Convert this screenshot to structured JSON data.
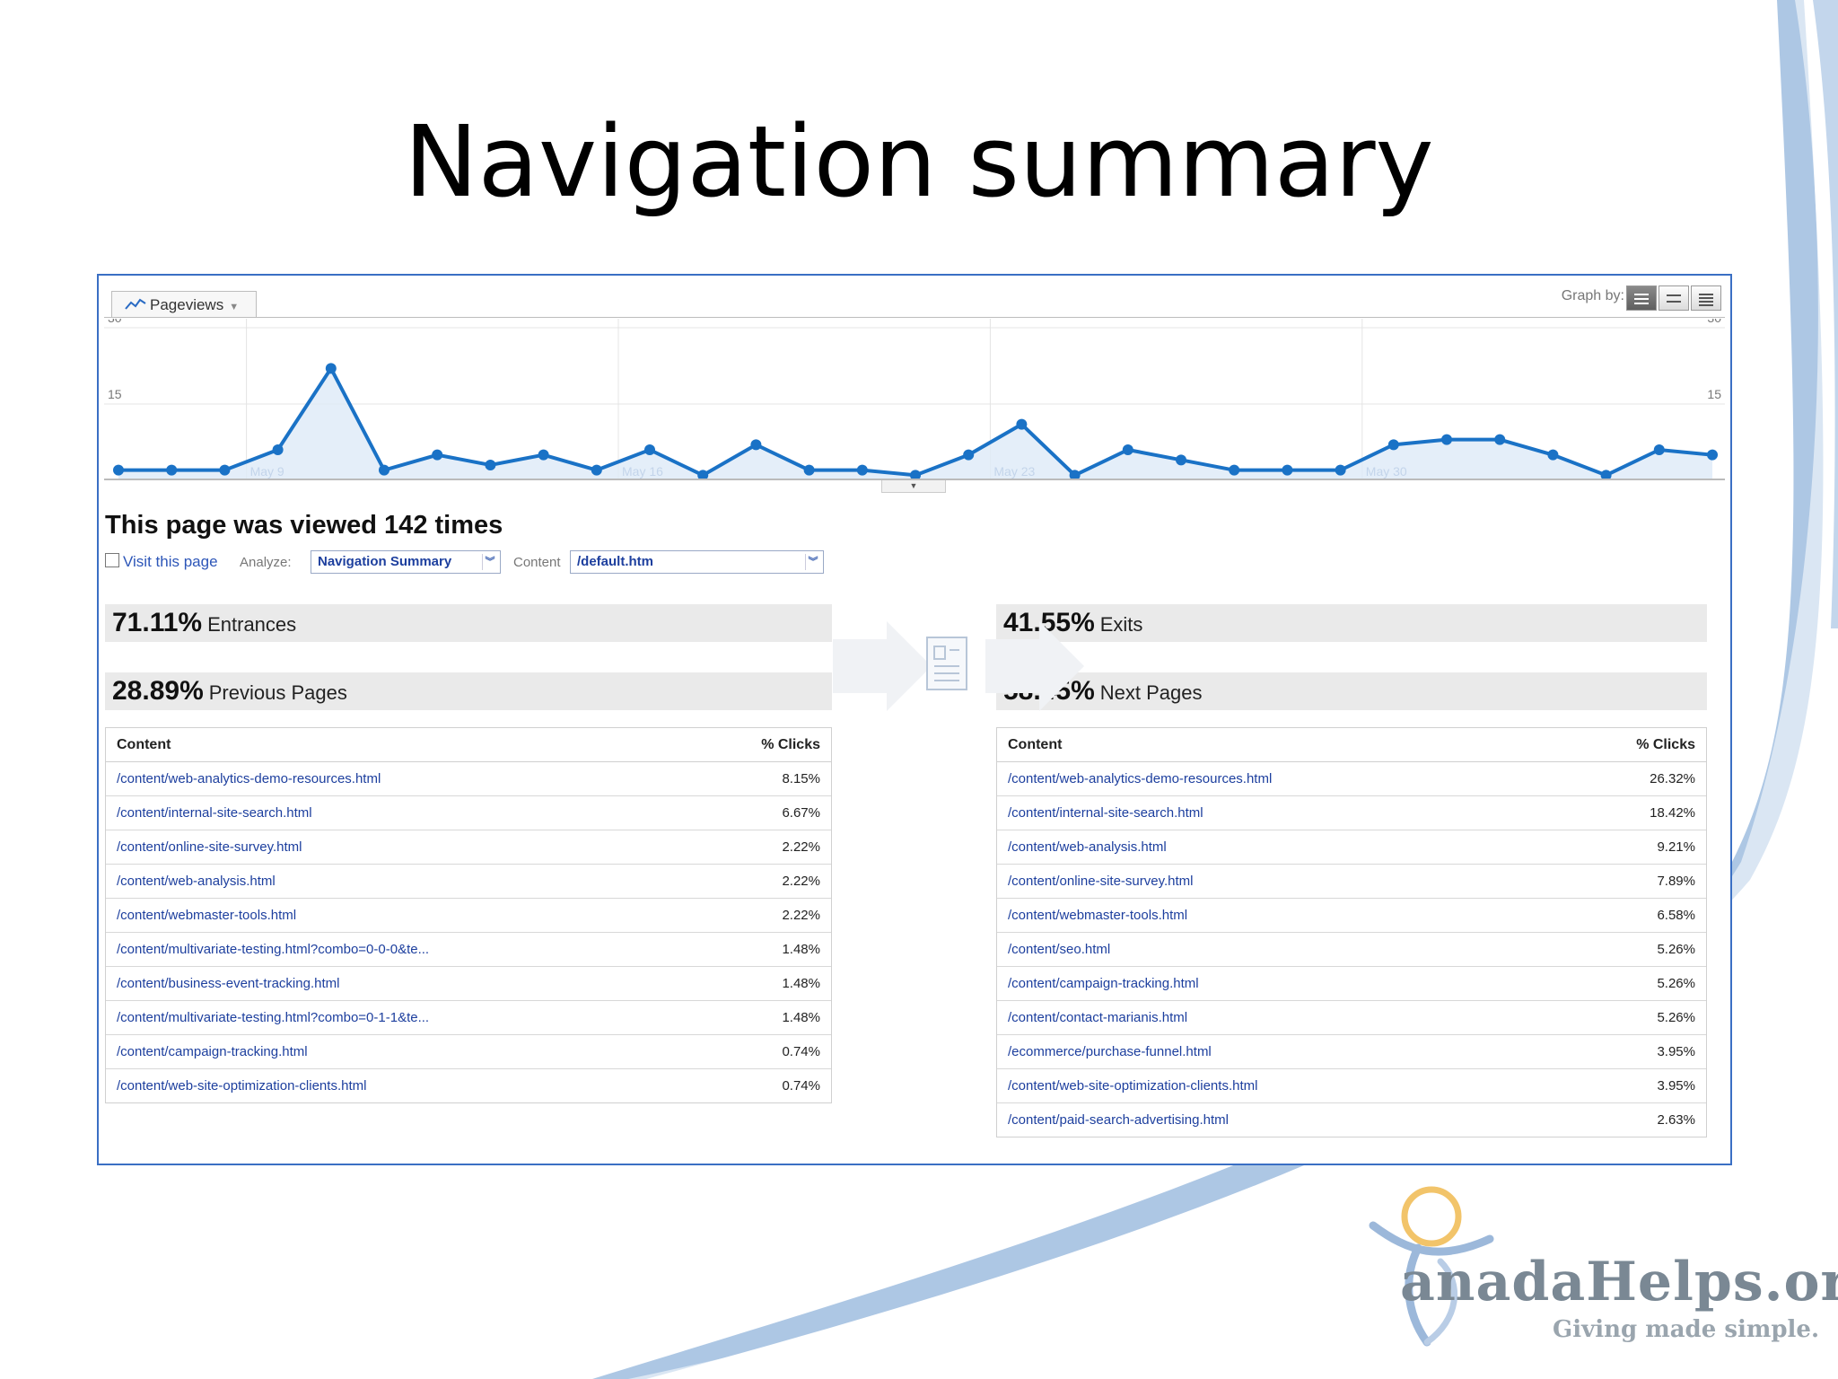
{
  "slide": {
    "title": "Navigation summary",
    "logo": {
      "name": "anadaHelps.org",
      "tagline": "Giving made simple.",
      "text": "CanadaHelps.org"
    }
  },
  "chart_header": {
    "tab_label": "Pageviews",
    "graph_by_label": "Graph by:"
  },
  "chart_data": {
    "type": "line",
    "ylim": [
      0,
      30
    ],
    "y_ticks_left": [
      "30",
      "15"
    ],
    "y_ticks_right": [
      "30",
      "15"
    ],
    "x_labels": [
      "May 9",
      "May 16",
      "May 23",
      "May 30"
    ],
    "series": [
      {
        "values": [
          2,
          2,
          2,
          6,
          22,
          2,
          5,
          3,
          5,
          2,
          6,
          1,
          7,
          2,
          2,
          1,
          5,
          11,
          1,
          6,
          4,
          2,
          2,
          2,
          7,
          8,
          8,
          5,
          1,
          6,
          5
        ]
      }
    ]
  },
  "info": {
    "viewed_text": "This page was viewed 142 times",
    "visit_link": "Visit this page",
    "analyze_label": "Analyze:",
    "analyze_value": "Navigation Summary",
    "content_label": "Content",
    "content_value": "/default.htm"
  },
  "summary": {
    "entrances_pct": "71.11%",
    "entrances_label": "Entrances",
    "previous_pct": "28.89%",
    "previous_label": "Previous Pages",
    "exits_pct": "41.55%",
    "exits_label": "Exits",
    "next_pct": "58.45%",
    "next_label": "Next Pages"
  },
  "previous_table": {
    "col_content": "Content",
    "col_clicks": "% Clicks",
    "rows": [
      {
        "page": "/content/web-analytics-demo-resources.html",
        "clicks": "8.15%"
      },
      {
        "page": "/content/internal-site-search.html",
        "clicks": "6.67%"
      },
      {
        "page": "/content/online-site-survey.html",
        "clicks": "2.22%"
      },
      {
        "page": "/content/web-analysis.html",
        "clicks": "2.22%"
      },
      {
        "page": "/content/webmaster-tools.html",
        "clicks": "2.22%"
      },
      {
        "page": "/content/multivariate-testing.html?combo=0-0-0&te...",
        "clicks": "1.48%"
      },
      {
        "page": "/content/business-event-tracking.html",
        "clicks": "1.48%"
      },
      {
        "page": "/content/multivariate-testing.html?combo=0-1-1&te...",
        "clicks": "1.48%"
      },
      {
        "page": "/content/campaign-tracking.html",
        "clicks": "0.74%"
      },
      {
        "page": "/content/web-site-optimization-clients.html",
        "clicks": "0.74%"
      }
    ]
  },
  "next_table": {
    "col_content": "Content",
    "col_clicks": "% Clicks",
    "rows": [
      {
        "page": "/content/web-analytics-demo-resources.html",
        "clicks": "26.32%"
      },
      {
        "page": "/content/internal-site-search.html",
        "clicks": "18.42%"
      },
      {
        "page": "/content/web-analysis.html",
        "clicks": "9.21%"
      },
      {
        "page": "/content/online-site-survey.html",
        "clicks": "7.89%"
      },
      {
        "page": "/content/webmaster-tools.html",
        "clicks": "6.58%"
      },
      {
        "page": "/content/seo.html",
        "clicks": "5.26%"
      },
      {
        "page": "/content/campaign-tracking.html",
        "clicks": "5.26%"
      },
      {
        "page": "/content/contact-marianis.html",
        "clicks": "5.26%"
      },
      {
        "page": "/ecommerce/purchase-funnel.html",
        "clicks": "3.95%"
      },
      {
        "page": "/content/web-site-optimization-clients.html",
        "clicks": "3.95%"
      },
      {
        "page": "/content/paid-search-advertising.html",
        "clicks": "2.63%"
      }
    ]
  },
  "colors": {
    "line": "#1a72c6",
    "fill": "#ddeaf7",
    "link": "#1d3f9e",
    "frame": "#3a6fc4",
    "swoosh": "#a9c4e3"
  }
}
